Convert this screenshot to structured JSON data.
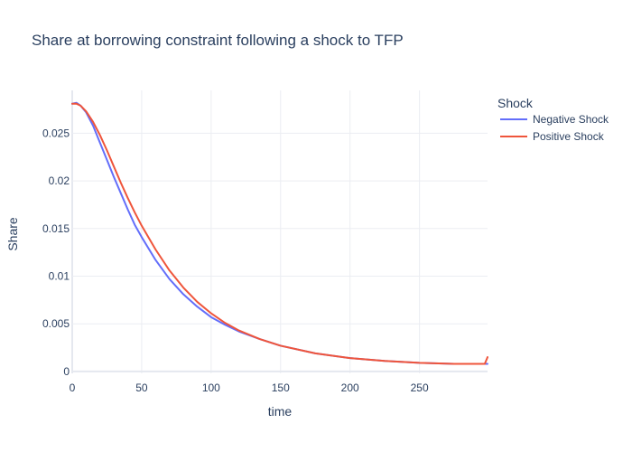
{
  "chart_data": {
    "type": "line",
    "title": "Share at borrowing constraint following a shock to TFP",
    "xlabel": "time",
    "ylabel": "Share",
    "xlim": [
      0,
      299
    ],
    "ylim": [
      -0.0002,
      0.0295
    ],
    "xticks": [
      0,
      50,
      100,
      150,
      200,
      250
    ],
    "xtick_labels": [
      "0",
      "50",
      "100",
      "150",
      "200",
      "250"
    ],
    "yticks": [
      0,
      0.005,
      0.01,
      0.015,
      0.02,
      0.025
    ],
    "ytick_labels": [
      "0",
      "0.005",
      "0.01",
      "0.015",
      "0.02",
      "0.025"
    ],
    "grid": true,
    "legend": {
      "title": "Shock",
      "placement": "top-right"
    },
    "series": [
      {
        "name": "Negative Shock",
        "color": "#636efa",
        "x": [
          0,
          3,
          6,
          10,
          15,
          20,
          25,
          30,
          35,
          40,
          45,
          50,
          60,
          70,
          80,
          90,
          100,
          110,
          120,
          135,
          150,
          175,
          200,
          225,
          250,
          275,
          299
        ],
        "y": [
          0.0281,
          0.0282,
          0.0279,
          0.0272,
          0.0258,
          0.024,
          0.0222,
          0.0204,
          0.0187,
          0.017,
          0.0154,
          0.0141,
          0.0117,
          0.0097,
          0.0081,
          0.0068,
          0.0057,
          0.0049,
          0.0042,
          0.0034,
          0.0027,
          0.0019,
          0.0014,
          0.0011,
          0.0009,
          0.0008,
          0.0008
        ]
      },
      {
        "name": "Positive Shock",
        "color": "#ef553b",
        "x": [
          0,
          3,
          6,
          10,
          15,
          20,
          25,
          30,
          35,
          40,
          45,
          50,
          60,
          70,
          80,
          90,
          100,
          110,
          120,
          135,
          150,
          175,
          200,
          225,
          250,
          275,
          297,
          299
        ],
        "y": [
          0.0281,
          0.0281,
          0.0279,
          0.0273,
          0.0262,
          0.0248,
          0.0232,
          0.0215,
          0.0198,
          0.0182,
          0.0167,
          0.0153,
          0.0128,
          0.0106,
          0.0088,
          0.0073,
          0.0061,
          0.0051,
          0.0043,
          0.0034,
          0.0027,
          0.0019,
          0.0014,
          0.0011,
          0.0009,
          0.0008,
          0.0008,
          0.0015
        ]
      }
    ]
  }
}
